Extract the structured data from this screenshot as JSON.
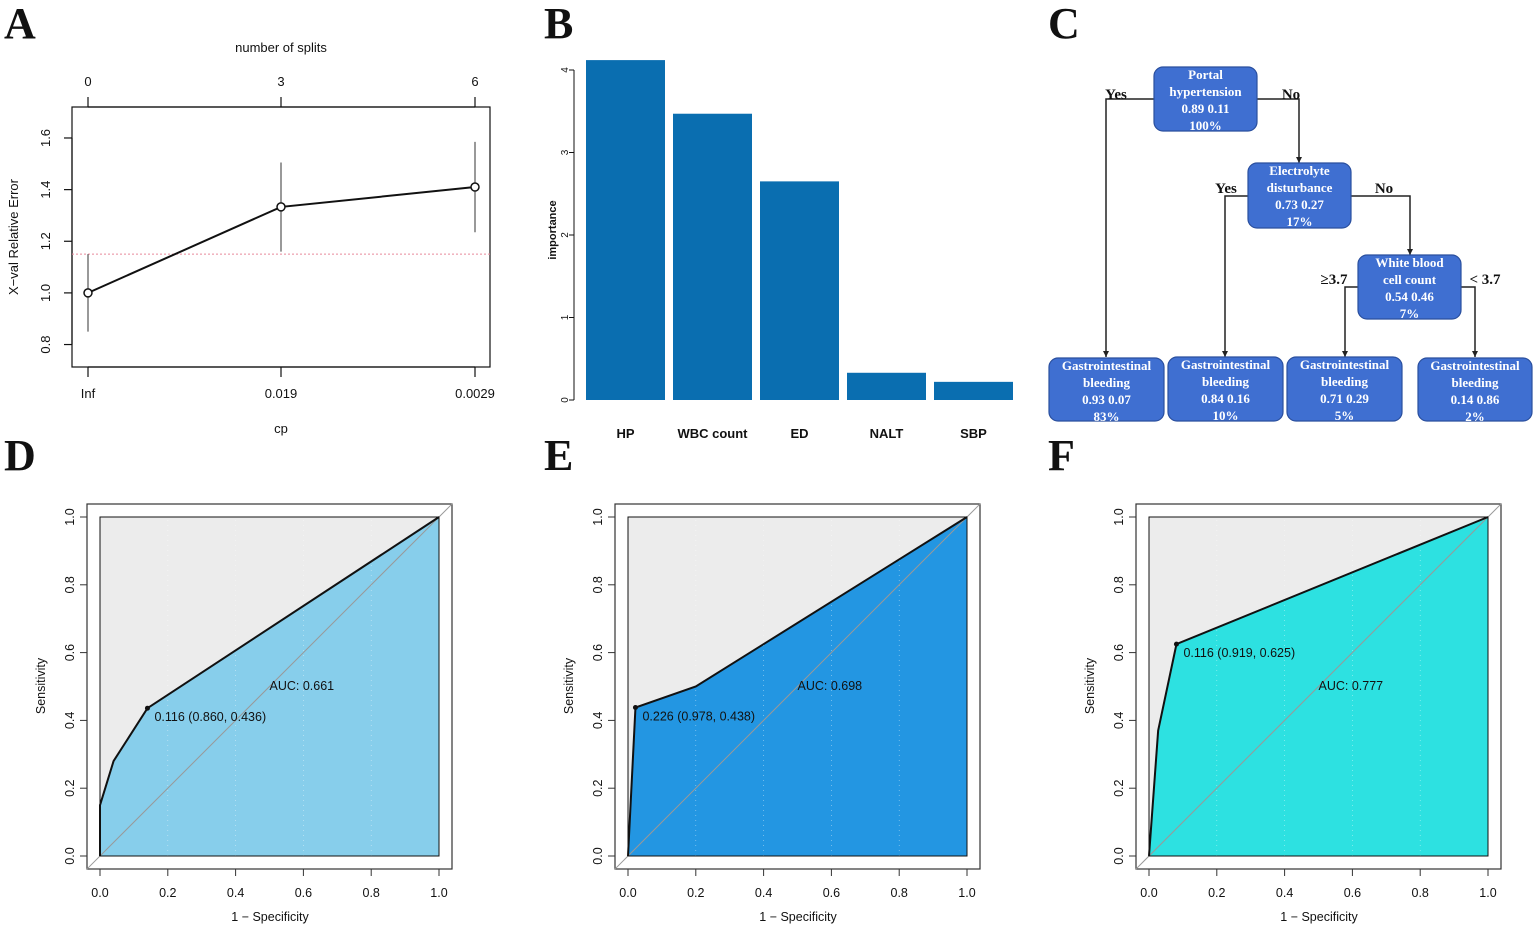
{
  "panel_letters": [
    "A",
    "B",
    "C",
    "D",
    "E",
    "F"
  ],
  "chart_data": [
    {
      "panel": "A",
      "type": "line",
      "title": "",
      "top_axis_label": "number of splits",
      "top_ticks": [
        "0",
        "3",
        "6"
      ],
      "xlabel": "cp",
      "x_ticks": [
        "Inf",
        "0.019",
        "0.0029"
      ],
      "ylabel": "X−val Relative Error",
      "y_ticks": [
        "0.8",
        "1.0",
        "1.2",
        "1.4",
        "1.6"
      ],
      "ylim": [
        0.713,
        1.72
      ],
      "values": [
        1.0,
        1.333,
        1.41
      ],
      "error_low": [
        0.85,
        1.16,
        1.235
      ],
      "error_high": [
        1.15,
        1.505,
        1.585
      ],
      "reference_line": 1.15,
      "reference_color": "#e8899a"
    },
    {
      "panel": "B",
      "type": "bar",
      "categories": [
        "HP",
        "WBC count",
        "ED",
        "NALT",
        "SBP"
      ],
      "values": [
        4.12,
        3.47,
        2.65,
        0.33,
        0.22
      ],
      "ylabel": "importance",
      "xlabel": "",
      "y_ticks": [
        "0",
        "1",
        "2",
        "3",
        "4"
      ],
      "ylim": [
        0,
        4.2
      ],
      "color": "#0a6eb0"
    },
    {
      "panel": "C",
      "type": "tree",
      "node_color": "#3f6fd1",
      "nodes": [
        {
          "id": "root",
          "lines": [
            "Portal",
            "hypertension",
            "0.89    0.11",
            "100%"
          ]
        },
        {
          "id": "electrolyte",
          "lines": [
            "Electrolyte",
            "disturbance",
            "0.73    0.27",
            "17%"
          ]
        },
        {
          "id": "wbc",
          "lines": [
            "White blood",
            "cell count",
            "0.54    0.46",
            "7%"
          ]
        },
        {
          "id": "leaf1",
          "lines": [
            "Gastrointestinal",
            "bleeding",
            "0.93    0.07",
            "83%"
          ]
        },
        {
          "id": "leaf2",
          "lines": [
            "Gastrointestinal",
            "bleeding",
            "0.84    0.16",
            "10%"
          ]
        },
        {
          "id": "leaf3",
          "lines": [
            "Gastrointestinal",
            "bleeding",
            "0.71    0.29",
            "5%"
          ]
        },
        {
          "id": "leaf4",
          "lines": [
            "Gastrointestinal",
            "bleeding",
            "0.14    0.86",
            "2%"
          ]
        }
      ],
      "edge_labels": [
        "Yes",
        "No",
        "Yes",
        "No",
        "≥3.7",
        "< 3.7"
      ]
    },
    {
      "panel": "D",
      "type": "area",
      "xlabel": "1 − Specificity",
      "ylabel": "Sensitivity",
      "ticks": [
        "0.0",
        "0.2",
        "0.4",
        "0.6",
        "0.8",
        "1.0"
      ],
      "x": [
        0,
        0,
        0.04,
        0.14,
        1
      ],
      "y": [
        0,
        0.15,
        0.28,
        0.436,
        1
      ],
      "best_point": [
        0.14,
        0.436
      ],
      "best_label": "0.116 (0.860, 0.436)",
      "auc_label": "AUC: 0.661",
      "fill": "#87ceeb"
    },
    {
      "panel": "E",
      "type": "area",
      "xlabel": "1 − Specificity",
      "ylabel": "Sensitivity",
      "ticks": [
        "0.0",
        "0.2",
        "0.4",
        "0.6",
        "0.8",
        "1.0"
      ],
      "x": [
        0,
        0.022,
        0.2,
        1
      ],
      "y": [
        0,
        0.438,
        0.5,
        1
      ],
      "best_point": [
        0.022,
        0.438
      ],
      "best_label": "0.226 (0.978, 0.438)",
      "auc_label": "AUC: 0.698",
      "fill": "#2396e2"
    },
    {
      "panel": "F",
      "type": "area",
      "xlabel": "1 − Specificity",
      "ylabel": "Sensitivity",
      "ticks": [
        "0.0",
        "0.2",
        "0.4",
        "0.6",
        "0.8",
        "1.0"
      ],
      "x": [
        0,
        0.027,
        0.081,
        1
      ],
      "y": [
        0,
        0.37,
        0.625,
        1
      ],
      "best_point": [
        0.081,
        0.625
      ],
      "best_label": "0.116 (0.919, 0.625)",
      "auc_label": "AUC: 0.777",
      "fill": "#2de1e1"
    }
  ]
}
